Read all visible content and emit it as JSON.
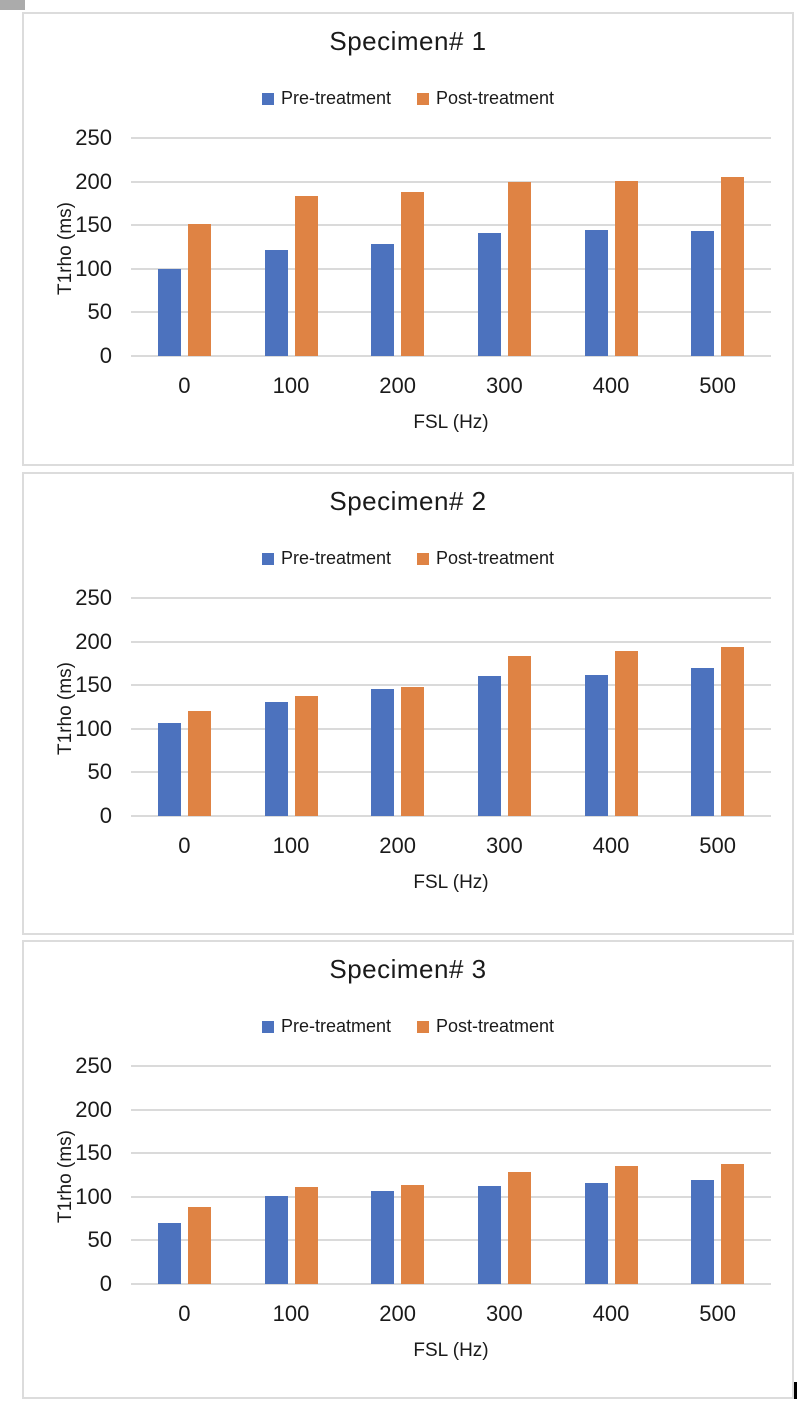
{
  "chart_data": [
    {
      "type": "bar",
      "title": "Specimen# 1",
      "xlabel": "FSL (Hz)",
      "ylabel": "T1rho (ms)",
      "categories": [
        "0",
        "100",
        "200",
        "300",
        "400",
        "500"
      ],
      "series": [
        {
          "name": "Pre-treatment",
          "color": "#4C72BE",
          "values": [
            100,
            122,
            128,
            141,
            144,
            143
          ]
        },
        {
          "name": "Post-treatment",
          "color": "#DF8344",
          "values": [
            151,
            183,
            188,
            199,
            201,
            205
          ]
        }
      ],
      "ylim": [
        0,
        250
      ],
      "yticks": [
        0,
        50,
        100,
        150,
        200,
        250
      ],
      "grid": true,
      "legend_position": "top"
    },
    {
      "type": "bar",
      "title": "Specimen# 2",
      "xlabel": "FSL (Hz)",
      "ylabel": "T1rho (ms)",
      "categories": [
        "0",
        "100",
        "200",
        "300",
        "400",
        "500"
      ],
      "series": [
        {
          "name": "Pre-treatment",
          "color": "#4C72BE",
          "values": [
            107,
            131,
            146,
            160,
            162,
            170
          ]
        },
        {
          "name": "Post-treatment",
          "color": "#DF8344",
          "values": [
            121,
            138,
            148,
            184,
            189,
            194
          ]
        }
      ],
      "ylim": [
        0,
        250
      ],
      "yticks": [
        0,
        50,
        100,
        150,
        200,
        250
      ],
      "grid": true,
      "legend_position": "top"
    },
    {
      "type": "bar",
      "title": "Specimen# 3",
      "xlabel": "FSL (Hz)",
      "ylabel": "T1rho (ms)",
      "categories": [
        "0",
        "100",
        "200",
        "300",
        "400",
        "500"
      ],
      "series": [
        {
          "name": "Pre-treatment",
          "color": "#4C72BE",
          "values": [
            70,
            101,
            107,
            112,
            116,
            119
          ]
        },
        {
          "name": "Post-treatment",
          "color": "#DF8344",
          "values": [
            88,
            111,
            114,
            128,
            135,
            138
          ]
        }
      ],
      "ylim": [
        0,
        250
      ],
      "yticks": [
        0,
        50,
        100,
        150,
        200,
        250
      ],
      "grid": true,
      "legend_position": "top"
    }
  ]
}
